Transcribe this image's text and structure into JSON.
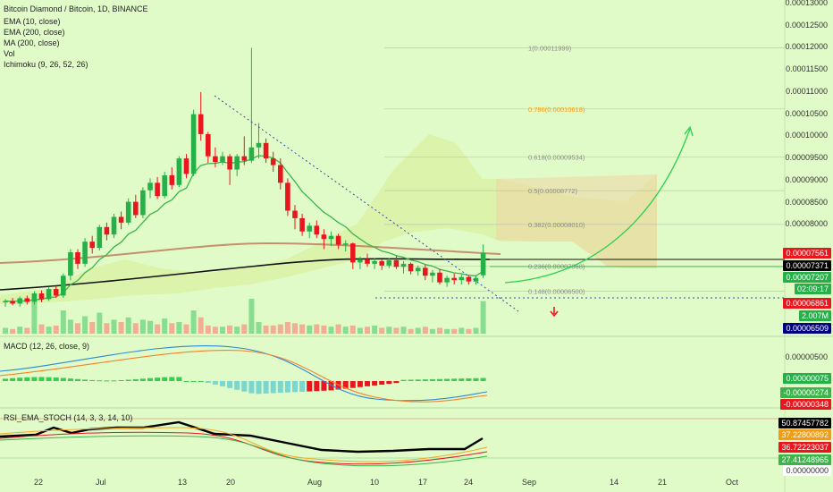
{
  "symbol": "Bitcoin Diamond / Bitcoin, 1D, BINANCE",
  "indicators": [
    "EMA (10, close)",
    "EMA (200, close)",
    "MA (200, close)",
    "Vol",
    "Ichimoku (9, 26, 52, 26)"
  ],
  "macd_label": "MACD (12, 26, close, 9)",
  "rsi_label": "RSI_EMA_STOCH (14, 3, 3, 14, 10)",
  "colors": {
    "background": "#e1fbc8",
    "up": "#26b148",
    "down": "#e8171d",
    "ema10": "#3cb44b",
    "ema200": "#000000",
    "ma200": "#c0745a",
    "fib": "#a9a9a9",
    "fib_786": "#f39c12"
  },
  "price_axis": [
    "0.00013000",
    "0.00012500",
    "0.00012000",
    "0.00011500",
    "0.00011000",
    "0.00010500",
    "0.00010000",
    "0.00009500",
    "0.00009000",
    "0.00008500",
    "0.00008000"
  ],
  "price_tags": [
    {
      "text": "0.00007561",
      "bg": "#e8171d"
    },
    {
      "text": "0.00007371",
      "bg": "#000000"
    },
    {
      "text": "0.00007207",
      "bg": "#26b148"
    },
    {
      "text": "02:09:17",
      "bg": "#26b148"
    },
    {
      "text": "0.00006861",
      "bg": "#e8171d"
    },
    {
      "text": "2.007M",
      "bg": "#26b148"
    },
    {
      "text": "0.00006509",
      "bg": "#000080"
    }
  ],
  "macd_axis": [
    "0.00000500"
  ],
  "macd_tags": [
    {
      "text": "0.00000075",
      "bg": "#26b148"
    },
    {
      "text": "-0.00000274",
      "bg": "#3cb44b"
    },
    {
      "text": "-0.00000348",
      "bg": "#e8171d"
    }
  ],
  "rsi_tags": [
    {
      "text": "50.87457782",
      "bg": "#000000"
    },
    {
      "text": "37.22800892",
      "bg": "#f39c12"
    },
    {
      "text": "36.72223037",
      "bg": "#e8171d"
    },
    {
      "text": "27.41248965",
      "bg": "#3cb44b"
    },
    {
      "text": "0.00000000",
      "bg": "#ffffff"
    }
  ],
  "fib_levels": [
    {
      "label": "1(0.00011999)",
      "price": 0.00011999
    },
    {
      "label": "0.786(0.00010618)",
      "price": 0.00010618
    },
    {
      "label": "0.618(0.00009534)",
      "price": 9.534e-05
    },
    {
      "label": "0.5(0.00008772)",
      "price": 8.772e-05
    },
    {
      "label": "0.382(0.00008010)",
      "price": 8.01e-05
    },
    {
      "label": "0.236(0.00007068)",
      "price": 7.068e-05
    },
    {
      "label": "0.148(0.00006500)",
      "price": 6.5e-05
    }
  ],
  "x_axis": [
    "22",
    "Jul",
    "13",
    "20",
    "Aug",
    "10",
    "17",
    "24",
    "Sep",
    "14",
    "21",
    "Oct"
  ],
  "chart_data": {
    "type": "candlestick",
    "title": "Bitcoin Diamond / Bitcoin, 1D, BINANCE",
    "ylim": [
      5.5e-05,
      0.00013
    ],
    "candles": [
      [
        6.25e-05,
        6.32e-05,
        6.15e-05,
        6.28e-05
      ],
      [
        6.28e-05,
        6.35e-05,
        6.18e-05,
        6.22e-05
      ],
      [
        6.22e-05,
        6.38e-05,
        6.15e-05,
        6.34e-05
      ],
      [
        6.34e-05,
        6.4e-05,
        6.2e-05,
        6.26e-05
      ],
      [
        6.26e-05,
        6.5e-05,
        6.2e-05,
        6.45e-05
      ],
      [
        6.45e-05,
        6.52e-05,
        6.25e-05,
        6.32e-05
      ],
      [
        6.32e-05,
        6.6e-05,
        6.28e-05,
        6.55e-05
      ],
      [
        6.55e-05,
        6.62e-05,
        6.35e-05,
        6.4e-05
      ],
      [
        6.4e-05,
        6.9e-05,
        6.35e-05,
        6.85e-05
      ],
      [
        6.85e-05,
        7.45e-05,
        6.75e-05,
        7.38e-05
      ],
      [
        7.38e-05,
        7.45e-05,
        7e-05,
        7.12e-05
      ],
      [
        7.12e-05,
        7.7e-05,
        7.05e-05,
        7.62e-05
      ],
      [
        7.62e-05,
        7.75e-05,
        7.35e-05,
        7.48e-05
      ],
      [
        7.48e-05,
        8e-05,
        7.42e-05,
        7.95e-05
      ],
      [
        7.95e-05,
        8.05e-05,
        7.65e-05,
        7.78e-05
      ],
      [
        7.78e-05,
        8.25e-05,
        7.7e-05,
        8.18e-05
      ],
      [
        8.18e-05,
        8.3e-05,
        7.9e-05,
        8.05e-05
      ],
      [
        8.05e-05,
        8.6e-05,
        8e-05,
        8.52e-05
      ],
      [
        8.52e-05,
        8.68e-05,
        8.15e-05,
        8.22e-05
      ],
      [
        8.22e-05,
        8.85e-05,
        8.15e-05,
        8.78e-05
      ],
      [
        8.78e-05,
        9.05e-05,
        8.6e-05,
        8.95e-05
      ],
      [
        8.95e-05,
        9.08e-05,
        8.58e-05,
        8.65e-05
      ],
      [
        8.65e-05,
        9.2e-05,
        8.6e-05,
        9.12e-05
      ],
      [
        9.12e-05,
        9.3e-05,
        8.8e-05,
        8.9e-05
      ],
      [
        8.9e-05,
        9.55e-05,
        8.85e-05,
        9.5e-05
      ],
      [
        9.5e-05,
        9.6e-05,
        9.05e-05,
        9.15e-05
      ],
      [
        9.15e-05,
        0.000106,
        9.1e-05,
        0.000105
      ],
      [
        0.000105,
        0.00011,
        9.9e-05,
        0.0001005
      ],
      [
        0.0001005,
        0.000101,
        9.4e-05,
        9.55e-05
      ],
      [
        9.55e-05,
        9.75e-05,
        9.3e-05,
        9.42e-05
      ],
      [
        9.42e-05,
        9.65e-05,
        9.35e-05,
        9.55e-05
      ],
      [
        9.55e-05,
        9.6e-05,
        8.9e-05,
        9.25e-05
      ],
      [
        9.25e-05,
        9.6e-05,
        9.1e-05,
        9.55e-05
      ],
      [
        9.55e-05,
        0.0001,
        9.35e-05,
        9.45e-05
      ],
      [
        9.45e-05,
        0.00012,
        9.4e-05,
        9.75e-05
      ],
      [
        9.75e-05,
        0.000103,
        9.5e-05,
        9.85e-05
      ],
      [
        9.85e-05,
        9.95e-05,
        9.4e-05,
        9.5e-05
      ],
      [
        9.5e-05,
        9.65e-05,
        9.2e-05,
        9.35e-05
      ],
      [
        9.35e-05,
        9.5e-05,
        8.8e-05,
        8.95e-05
      ],
      [
        8.95e-05,
        9.05e-05,
        8.2e-05,
        8.32e-05
      ],
      [
        8.32e-05,
        8.45e-05,
        7.9e-05,
        8.15e-05
      ],
      [
        8.15e-05,
        8.25e-05,
        7.75e-05,
        7.85e-05
      ],
      [
        7.85e-05,
        8.05e-05,
        7.7e-05,
        7.98e-05
      ],
      [
        7.98e-05,
        8.1e-05,
        7.7e-05,
        7.78e-05
      ],
      [
        7.78e-05,
        7.9e-05,
        7.45e-05,
        7.68e-05
      ],
      [
        7.68e-05,
        7.85e-05,
        7.52e-05,
        7.75e-05
      ],
      [
        7.75e-05,
        7.8e-05,
        7.45e-05,
        7.55e-05
      ],
      [
        7.55e-05,
        7.65e-05,
        7.4e-05,
        7.58e-05
      ],
      [
        7.58e-05,
        7.6e-05,
        7e-05,
        7.15e-05
      ],
      [
        7.15e-05,
        7.28e-05,
        7e-05,
        7.22e-05
      ],
      [
        7.22e-05,
        7.35e-05,
        7.05e-05,
        7.12e-05
      ],
      [
        7.12e-05,
        7.25e-05,
        7e-05,
        7.18e-05
      ],
      [
        7.18e-05,
        7.22e-05,
        6.98e-05,
        7.08e-05
      ],
      [
        7.08e-05,
        7.25e-05,
        7.02e-05,
        7.2e-05
      ],
      [
        7.2e-05,
        7.3e-05,
        7e-05,
        7.05e-05
      ],
      [
        7.05e-05,
        7.18e-05,
        6.9e-05,
        7.12e-05
      ],
      [
        7.12e-05,
        7.15e-05,
        6.88e-05,
        6.95e-05
      ],
      [
        6.95e-05,
        7.08e-05,
        6.85e-05,
        7.03e-05
      ],
      [
        7.03e-05,
        7.1e-05,
        6.75e-05,
        6.85e-05
      ],
      [
        6.85e-05,
        6.98e-05,
        6.7e-05,
        6.92e-05
      ],
      [
        6.92e-05,
        7e-05,
        6.65e-05,
        6.7e-05
      ],
      [
        6.7e-05,
        6.85e-05,
        6.6e-05,
        6.8e-05
      ],
      [
        6.8e-05,
        6.9e-05,
        6.65e-05,
        6.75e-05
      ],
      [
        6.75e-05,
        6.88e-05,
        6.65e-05,
        6.82e-05
      ],
      [
        6.82e-05,
        6.85e-05,
        6.65e-05,
        6.72e-05
      ],
      [
        6.72e-05,
        6.86e-05,
        6.65e-05,
        6.8e-05
      ],
      [
        6.86e-05,
        7.56e-05,
        6.8e-05,
        7.37e-05
      ]
    ],
    "volume": [
      5,
      4,
      6,
      5,
      30,
      8,
      6,
      7,
      20,
      12,
      9,
      15,
      10,
      18,
      9,
      12,
      10,
      14,
      9,
      12,
      11,
      8,
      13,
      9,
      10,
      8,
      20,
      14,
      7,
      6,
      6,
      7,
      6,
      8,
      30,
      10,
      7,
      7,
      8,
      10,
      9,
      8,
      7,
      8,
      7,
      6,
      8,
      6,
      7,
      5,
      6,
      7,
      5,
      6,
      5,
      6,
      4,
      5,
      6,
      4,
      5,
      4,
      4,
      5,
      4,
      5,
      28
    ],
    "macd": {
      "label": "MACD (12, 26, close, 9)"
    },
    "rsi": {
      "label": "RSI_EMA_STOCH (14, 3, 3, 14, 10)"
    }
  }
}
